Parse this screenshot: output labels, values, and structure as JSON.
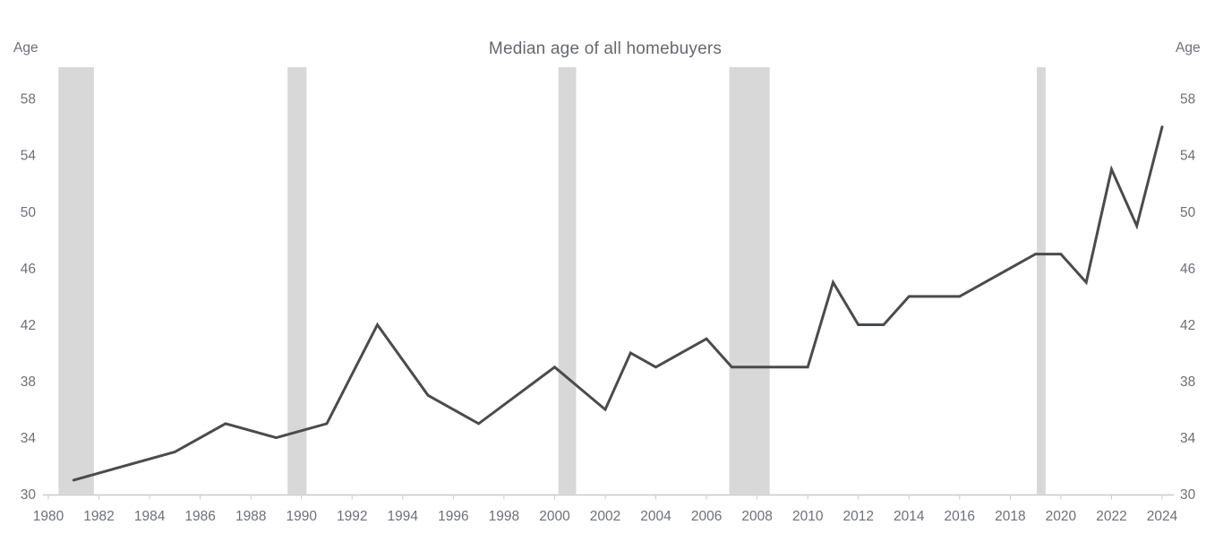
{
  "chart_data": {
    "type": "line",
    "title": "Median age of all homebuyers",
    "ylabel_left": "Age",
    "ylabel_right": "Age",
    "xlabel": "",
    "xlim": [
      1980,
      2024
    ],
    "ylim": [
      30,
      60.2
    ],
    "x_tick_years": [
      1980,
      1982,
      1984,
      1986,
      1988,
      1990,
      1992,
      1994,
      1996,
      1998,
      2000,
      2002,
      2004,
      2006,
      2008,
      2010,
      2012,
      2014,
      2016,
      2018,
      2020,
      2022,
      2024
    ],
    "y_tick_ages": [
      30,
      34,
      38,
      42,
      46,
      50,
      54,
      58
    ],
    "grid": false,
    "legend": "none",
    "series": [
      {
        "name": "Median age of all homebuyers",
        "points": [
          [
            1981,
            31
          ],
          [
            1985,
            33
          ],
          [
            1987,
            35
          ],
          [
            1989,
            34
          ],
          [
            1991,
            35
          ],
          [
            1993,
            42
          ],
          [
            1995,
            37
          ],
          [
            1997,
            35
          ],
          [
            2000,
            39
          ],
          [
            2002,
            36
          ],
          [
            2003,
            40
          ],
          [
            2004,
            39
          ],
          [
            2006,
            41
          ],
          [
            2007,
            39
          ],
          [
            2010,
            39
          ],
          [
            2011,
            45
          ],
          [
            2012,
            42
          ],
          [
            2013,
            42
          ],
          [
            2014,
            44
          ],
          [
            2016,
            44
          ],
          [
            2019,
            47
          ],
          [
            2020,
            47
          ],
          [
            2021,
            45
          ],
          [
            2022,
            53
          ],
          [
            2023,
            49
          ],
          [
            2024,
            56
          ]
        ]
      }
    ],
    "recession_bands": [
      [
        1980.4,
        1981.8
      ],
      [
        1989.45,
        1990.2
      ],
      [
        2000.15,
        2000.85
      ],
      [
        2006.9,
        2008.5
      ],
      [
        2019.05,
        2019.4
      ]
    ],
    "colors": {
      "line": "#4a4b4d",
      "band": "#d8d8d8",
      "axis": "#c8cacc",
      "tick_text": "#6e7074",
      "title_text": "#66686c",
      "background": "#ffffff"
    }
  }
}
